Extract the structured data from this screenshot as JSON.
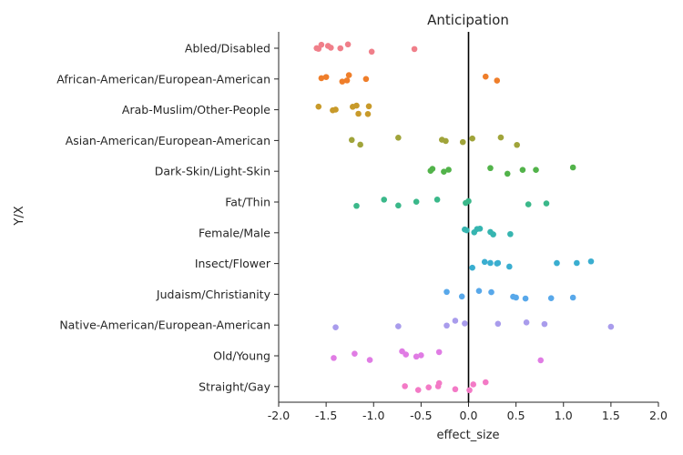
{
  "chart_data": {
    "type": "scatter",
    "title": "Anticipation",
    "xlabel": "effect_size",
    "ylabel": "Y/X",
    "xlim": [
      -2.0,
      2.0
    ],
    "x_ticks": [
      "-2.0",
      "-1.5",
      "-1.0",
      "-0.5",
      "0.0",
      "0.5",
      "1.0",
      "1.5",
      "2.0"
    ],
    "x_tick_values": [
      -2.0,
      -1.5,
      -1.0,
      -0.5,
      0.0,
      0.5,
      1.0,
      1.5,
      2.0
    ],
    "reference_line_x": 0.0,
    "grid": false,
    "legend": "none",
    "categories": [
      "Abled/Disabled",
      "African-American/European-American",
      "Arab-Muslim/Other-People",
      "Asian-American/European-American",
      "Dark-Skin/Light-Skin",
      "Fat/Thin",
      "Female/Male",
      "Insect/Flower",
      "Judaism/Christianity",
      "Native-American/European-American",
      "Old/Young",
      "Straight/Gay"
    ],
    "colors": [
      "#f07f8a",
      "#ef7e2a",
      "#c89a2a",
      "#a0a43a",
      "#52b34a",
      "#3bb88a",
      "#36b5b0",
      "#3aaed0",
      "#58a8ea",
      "#a99cec",
      "#e07ce4",
      "#f37ac6"
    ],
    "series": [
      {
        "category": "Abled/Disabled",
        "values": [
          -1.6,
          -1.58,
          -1.55,
          -1.48,
          -1.45,
          -1.35,
          -1.27,
          -1.02,
          -0.57
        ]
      },
      {
        "category": "African-American/European-American",
        "values": [
          -1.55,
          -1.5,
          -1.33,
          -1.28,
          -1.26,
          -1.08,
          0.18,
          0.3
        ]
      },
      {
        "category": "Arab-Muslim/Other-People",
        "values": [
          -1.58,
          -1.43,
          -1.4,
          -1.22,
          -1.18,
          -1.16,
          -1.06,
          -1.05
        ]
      },
      {
        "category": "Asian-American/European-American",
        "values": [
          -1.23,
          -1.14,
          -0.74,
          -0.28,
          -0.24,
          -0.06,
          0.04,
          0.34,
          0.51
        ]
      },
      {
        "category": "Dark-Skin/Light-Skin",
        "values": [
          -0.4,
          -0.38,
          -0.26,
          -0.21,
          0.23,
          0.41,
          0.57,
          0.71,
          1.1
        ]
      },
      {
        "category": "Fat/Thin",
        "values": [
          -1.18,
          -0.89,
          -0.74,
          -0.55,
          -0.33,
          -0.03,
          0.0,
          0.63,
          0.82
        ]
      },
      {
        "category": "Female/Male",
        "values": [
          -0.04,
          -0.02,
          0.06,
          0.09,
          0.12,
          0.23,
          0.26,
          0.44
        ]
      },
      {
        "category": "Insect/Flower",
        "values": [
          0.04,
          0.17,
          0.23,
          0.3,
          0.31,
          0.43,
          0.93,
          1.14,
          1.29
        ]
      },
      {
        "category": "Judaism/Christianity",
        "values": [
          -0.23,
          -0.07,
          0.11,
          0.24,
          0.47,
          0.5,
          0.6,
          0.87,
          1.1
        ]
      },
      {
        "category": "Native-American/European-American",
        "values": [
          -1.4,
          -0.74,
          -0.23,
          -0.14,
          -0.04,
          0.31,
          0.61,
          0.8,
          1.5
        ]
      },
      {
        "category": "Old/Young",
        "values": [
          -1.42,
          -1.2,
          -1.04,
          -0.7,
          -0.66,
          -0.55,
          -0.5,
          -0.31,
          0.76
        ]
      },
      {
        "category": "Straight/Gay",
        "values": [
          -0.67,
          -0.53,
          -0.42,
          -0.32,
          -0.31,
          -0.14,
          0.01,
          0.05,
          0.18
        ]
      }
    ]
  }
}
